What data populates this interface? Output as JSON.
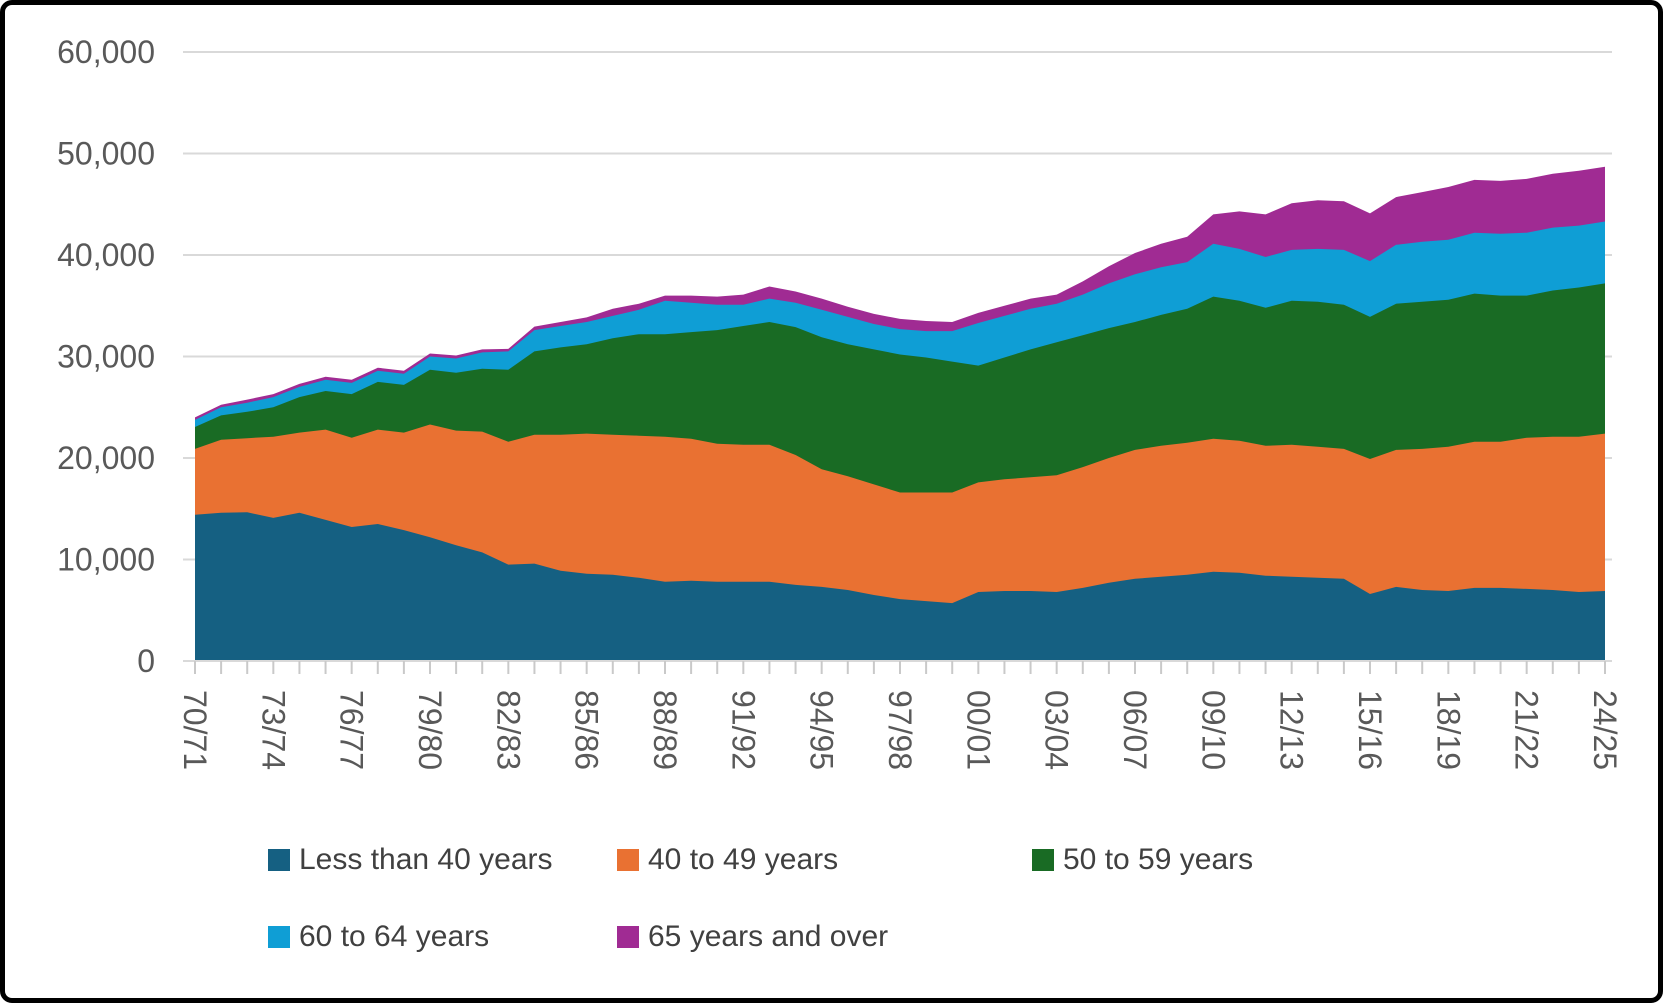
{
  "page": {
    "background": "#FFFFFF",
    "frame_border_color": "#000000"
  },
  "chart_data": {
    "type": "area",
    "stacked": true,
    "title": "",
    "xlabel": "",
    "ylabel": "",
    "ylim": [
      0,
      60000
    ],
    "ytick_interval": 10000,
    "yticks": [
      0,
      10000,
      20000,
      30000,
      40000,
      50000,
      60000
    ],
    "ytick_labels": [
      "0",
      "10,000",
      "20,000",
      "30,000",
      "40,000",
      "50,000",
      "60,000"
    ],
    "grid": "horizontal",
    "gridline_color": "#D9D9D9",
    "axis_line_color": "#D9D9D9",
    "tick_color": "#C9C9C9",
    "axis_label_color": "#595959",
    "xtick_label_every": 3,
    "legend_position": "bottom",
    "categories": [
      "70/71",
      "71/72",
      "72/73",
      "73/74",
      "74/75",
      "75/76",
      "76/77",
      "77/78",
      "78/79",
      "79/80",
      "80/81",
      "81/82",
      "82/83",
      "83/84",
      "84/85",
      "85/86",
      "86/87",
      "87/88",
      "88/89",
      "89/90",
      "90/91",
      "91/92",
      "92/93",
      "93/94",
      "94/95",
      "95/96",
      "96/97",
      "97/98",
      "98/99",
      "99/00",
      "00/01",
      "01/02",
      "02/03",
      "03/04",
      "04/05",
      "05/06",
      "06/07",
      "07/08",
      "08/09",
      "09/10",
      "10/11",
      "11/12",
      "12/13",
      "13/14",
      "14/15",
      "15/16",
      "16/17",
      "17/18",
      "18/19",
      "19/20",
      "20/21",
      "21/22",
      "22/23",
      "23/24",
      "24/25"
    ],
    "series": [
      {
        "name": "Less than 40 years",
        "color": "#156082",
        "values": [
          14400,
          14600,
          14650,
          14100,
          14600,
          13900,
          13200,
          13500,
          12900,
          12200,
          11400,
          10700,
          9500,
          9600,
          8900,
          8600,
          8500,
          8200,
          7800,
          7900,
          7800,
          7800,
          7800,
          7500,
          7300,
          7000,
          6500,
          6100,
          5900,
          5700,
          6800,
          6900,
          6900,
          6800,
          7200,
          7700,
          8100,
          8300,
          8500,
          8800,
          8700,
          8400,
          8300,
          8200,
          8100,
          6600,
          7300,
          7000,
          6900,
          7200,
          7200,
          7100,
          7000,
          6800,
          6900
        ]
      },
      {
        "name": "40 to 49 years",
        "color": "#E97132",
        "values": [
          6500,
          7200,
          7300,
          8000,
          7900,
          8900,
          8800,
          9300,
          9600,
          11100,
          11300,
          11900,
          12100,
          12700,
          13400,
          13800,
          13800,
          14000,
          14300,
          14000,
          13600,
          13500,
          13500,
          12800,
          11600,
          11200,
          10900,
          10500,
          10700,
          10900,
          10800,
          11000,
          11200,
          11500,
          11900,
          12300,
          12700,
          12900,
          13000,
          13100,
          13000,
          12800,
          13000,
          12900,
          12800,
          13300,
          13500,
          13900,
          14200,
          14400,
          14400,
          14900,
          15100,
          15300,
          15500
        ]
      },
      {
        "name": "50 to 59 years",
        "color": "#196B24",
        "values": [
          2150,
          2400,
          2600,
          2900,
          3500,
          3800,
          4300,
          4700,
          4700,
          5400,
          5700,
          6200,
          7100,
          8200,
          8600,
          8800,
          9500,
          10000,
          10100,
          10500,
          11200,
          11700,
          12100,
          12600,
          13000,
          13000,
          13300,
          13600,
          13300,
          12900,
          11500,
          12000,
          12600,
          13100,
          13000,
          12800,
          12600,
          12900,
          13200,
          14000,
          13800,
          13600,
          14200,
          14300,
          14200,
          14000,
          14400,
          14500,
          14500,
          14600,
          14400,
          14000,
          14400,
          14700,
          14800
        ]
      },
      {
        "name": "60 to 64 years",
        "color": "#0F9ED5",
        "values": [
          700,
          800,
          900,
          1000,
          1000,
          1100,
          1100,
          1100,
          1100,
          1300,
          1400,
          1600,
          1800,
          2100,
          2100,
          2200,
          2200,
          2400,
          3300,
          2900,
          2500,
          2100,
          2300,
          2400,
          2700,
          2700,
          2500,
          2500,
          2600,
          3000,
          4200,
          4100,
          4000,
          3800,
          4000,
          4400,
          4700,
          4700,
          4600,
          5200,
          5100,
          5000,
          5000,
          5200,
          5400,
          5500,
          5800,
          5900,
          5900,
          6000,
          6100,
          6200,
          6200,
          6100,
          6100
        ]
      },
      {
        "name": "65 years and over",
        "color": "#A02B93",
        "values": [
          250,
          250,
          300,
          300,
          300,
          300,
          300,
          300,
          300,
          300,
          300,
          300,
          250,
          350,
          400,
          450,
          700,
          600,
          500,
          700,
          800,
          1000,
          1200,
          1100,
          1100,
          1000,
          1000,
          1000,
          1000,
          900,
          1000,
          1000,
          1000,
          900,
          1300,
          1700,
          2100,
          2300,
          2500,
          2900,
          3700,
          4200,
          4600,
          4800,
          4800,
          4700,
          4700,
          4900,
          5200,
          5200,
          5200,
          5300,
          5300,
          5400,
          5400
        ]
      }
    ],
    "legend_text_color": "#404040"
  }
}
